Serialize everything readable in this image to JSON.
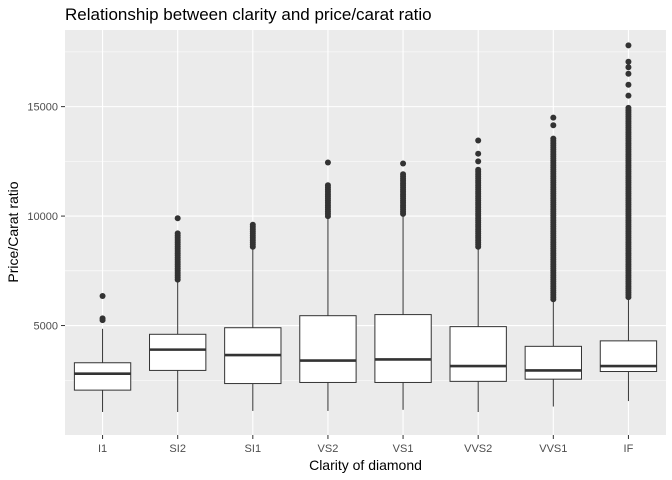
{
  "chart_data": {
    "type": "boxplot",
    "title": "Relationship between clarity and price/carat ratio",
    "xlabel": "Clarity of diamond",
    "ylabel": "Price/Carat ratio",
    "categories": [
      "I1",
      "SI2",
      "SI1",
      "VS2",
      "VS1",
      "VVS2",
      "VVS1",
      "IF"
    ],
    "yticks": [
      5000,
      10000,
      15000
    ],
    "ylim": [
      0,
      18500
    ],
    "grid": true,
    "background": "#ebebeb",
    "gridline_color": "#ffffff",
    "box_fill": "#ffffff",
    "line_color": "#333333",
    "boxes": [
      {
        "label": "I1",
        "min": 1050,
        "q1": 2050,
        "median": 2800,
        "q3": 3300,
        "max": 4850,
        "outliers": [
          5250,
          5330,
          6350
        ]
      },
      {
        "label": "SI2",
        "min": 1050,
        "q1": 2950,
        "median": 3900,
        "q3": 4600,
        "max": 7100,
        "outlier_range": [
          7100,
          9300
        ],
        "outliers": [
          9900
        ]
      },
      {
        "label": "SI1",
        "min": 1100,
        "q1": 2350,
        "median": 3650,
        "q3": 4900,
        "max": 8600,
        "outlier_range": [
          8600,
          9700
        ],
        "outliers": []
      },
      {
        "label": "VS2",
        "min": 1100,
        "q1": 2400,
        "median": 3400,
        "q3": 5450,
        "max": 10000,
        "outlier_range": [
          10000,
          11500
        ],
        "outliers": [
          12450
        ]
      },
      {
        "label": "VS1",
        "min": 1150,
        "q1": 2400,
        "median": 3450,
        "q3": 5500,
        "max": 10100,
        "outlier_range": [
          10100,
          11950
        ],
        "outliers": [
          12400
        ]
      },
      {
        "label": "VVS2",
        "min": 1050,
        "q1": 2450,
        "median": 3150,
        "q3": 4950,
        "max": 8600,
        "outlier_range": [
          8600,
          12200
        ],
        "outliers": [
          12500,
          12850,
          13450
        ]
      },
      {
        "label": "VVS1",
        "min": 1300,
        "q1": 2550,
        "median": 2950,
        "q3": 4050,
        "max": 6200,
        "outlier_range": [
          6200,
          13600
        ],
        "outliers": [
          14150,
          14500
        ]
      },
      {
        "label": "IF",
        "min": 1550,
        "q1": 2900,
        "median": 3150,
        "q3": 4300,
        "max": 6300,
        "outlier_range": [
          6300,
          15000
        ],
        "outliers": [
          15500,
          16000,
          16500,
          16800,
          17050,
          17800
        ]
      }
    ]
  }
}
